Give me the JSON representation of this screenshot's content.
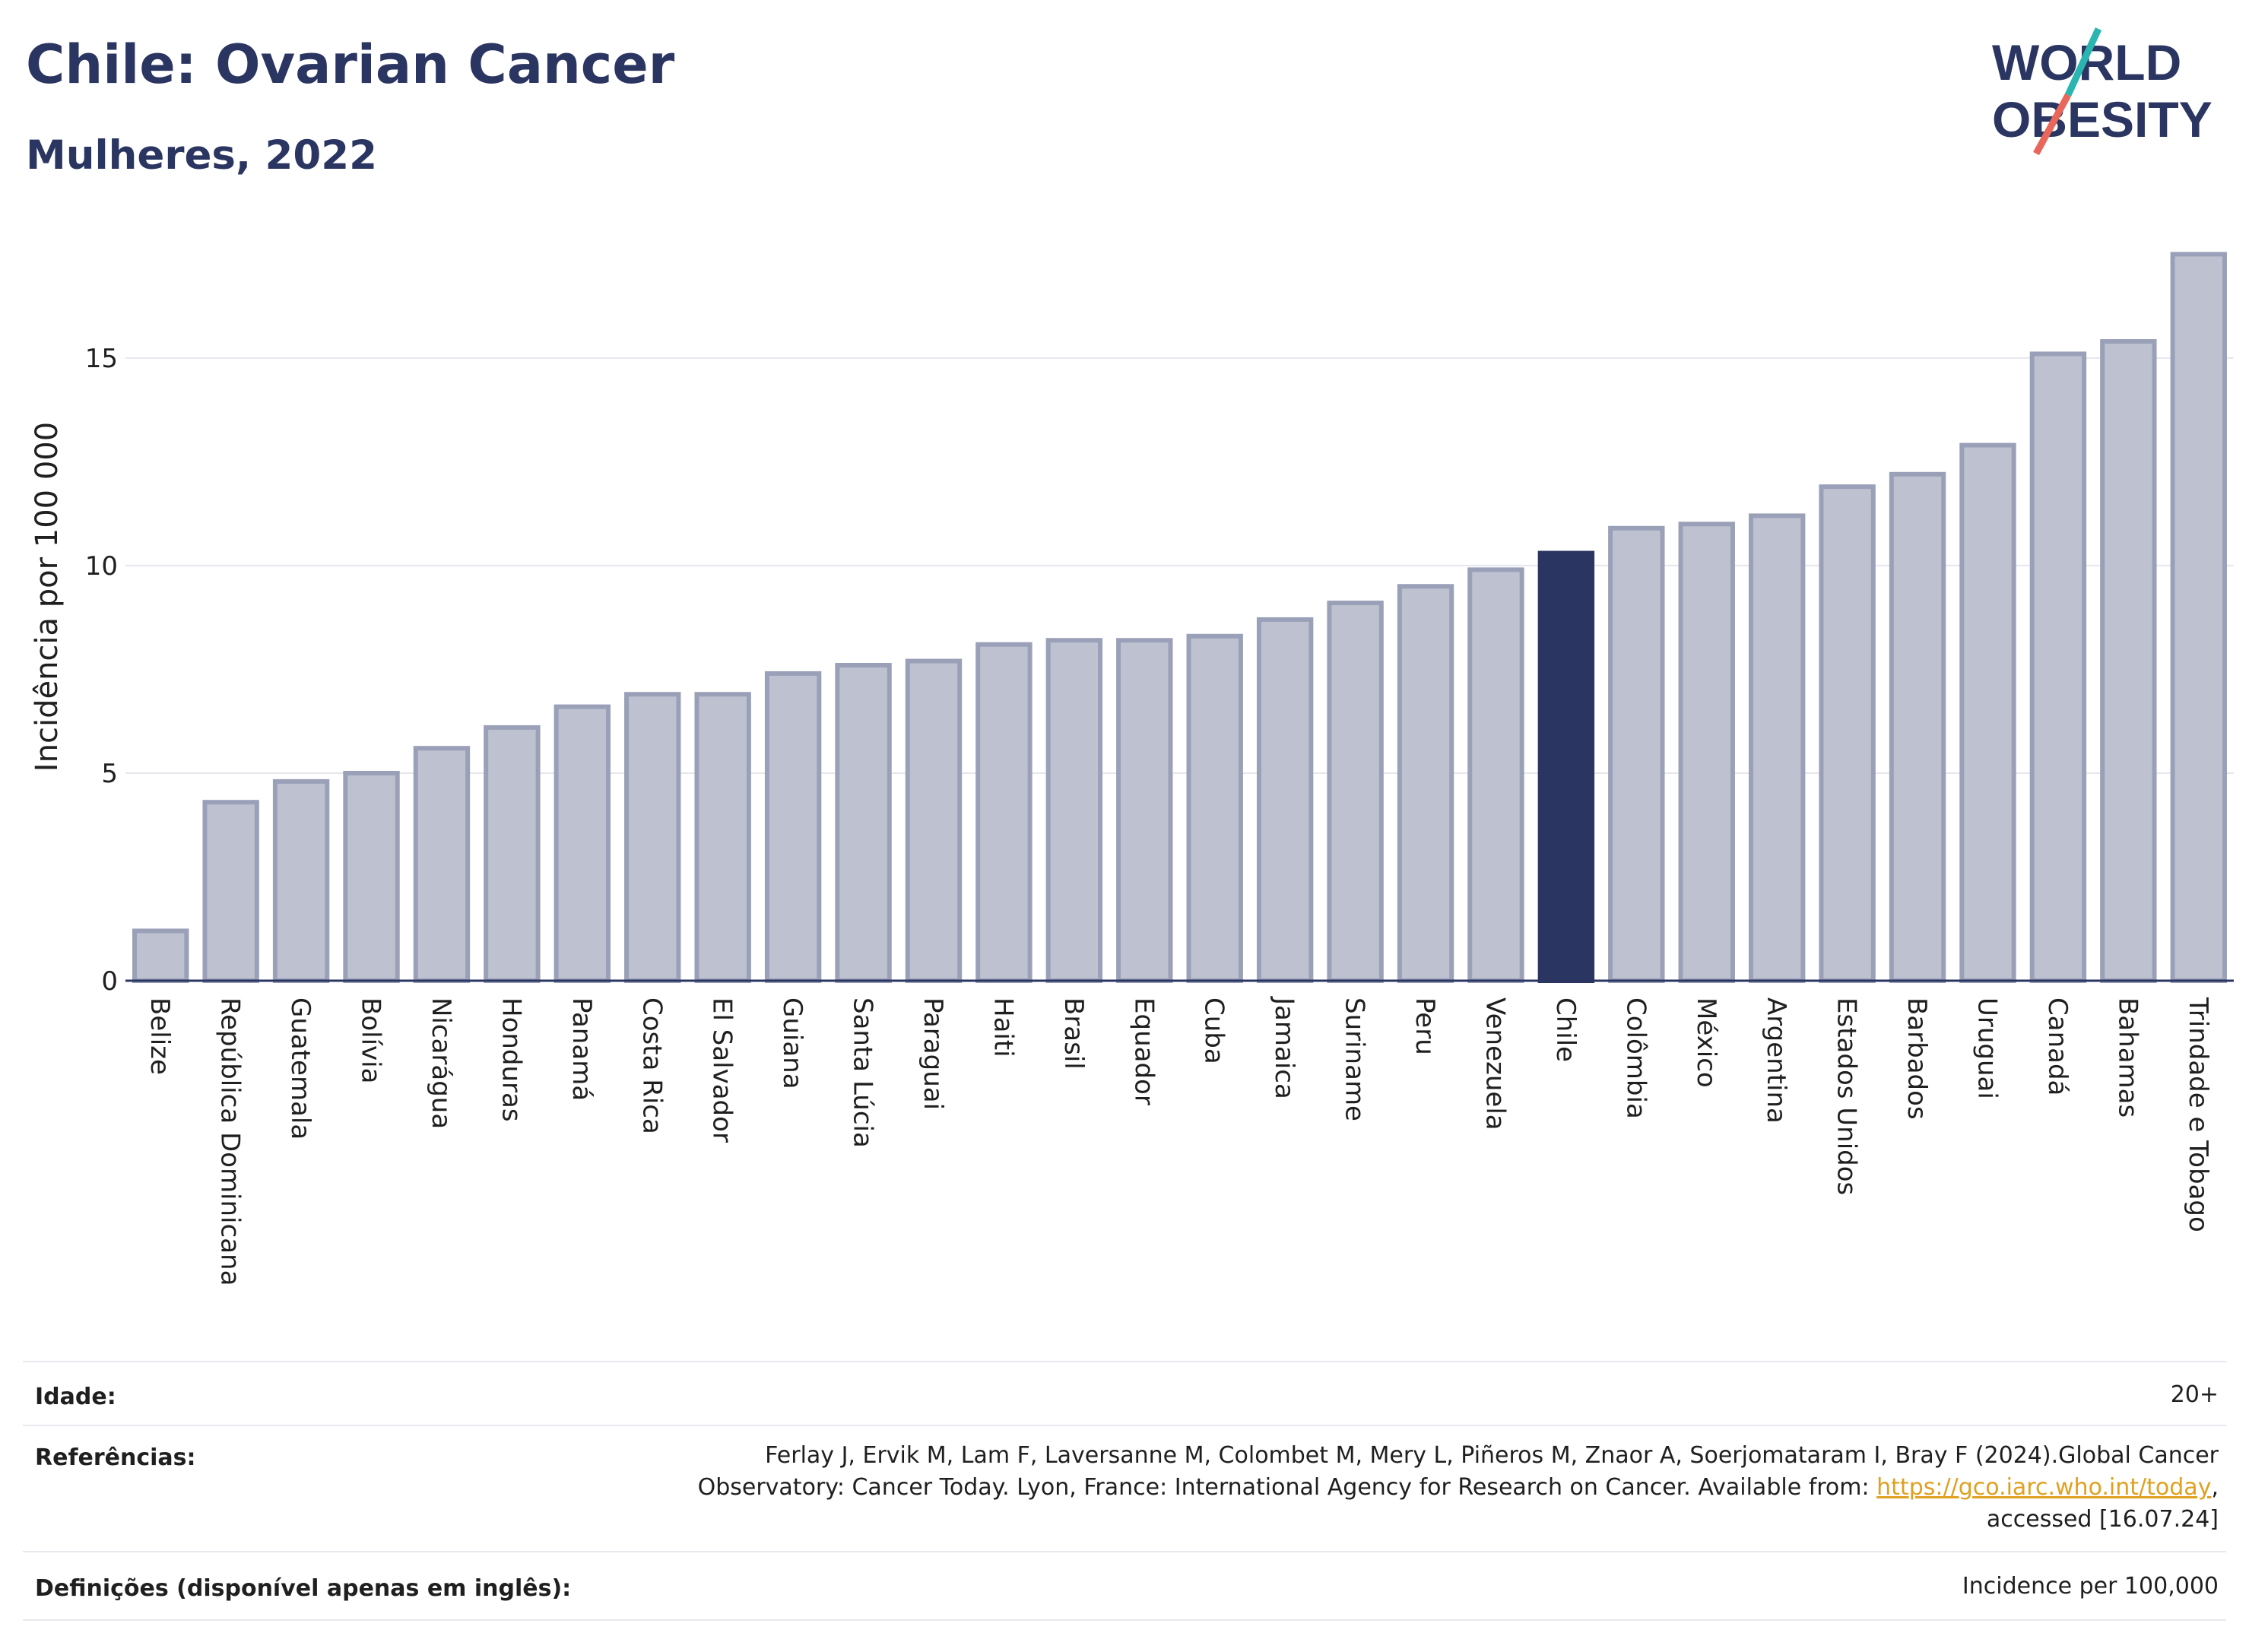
{
  "header": {
    "title": "Chile: Ovarian Cancer",
    "subtitle": "Mulheres, 2022"
  },
  "logo": {
    "line1": "WORLD",
    "line2": "OBESITY",
    "accent_colors": [
      "#2bb5b0",
      "#e8665a"
    ]
  },
  "colors": {
    "bar": "#bec2d0",
    "bar_edge": "#9aa0b8",
    "highlight": "#2b3561",
    "grid": "#e6e6ee",
    "axis": "#2b3561"
  },
  "chart_data": {
    "type": "bar",
    "ylabel": "Incidência por 100 000",
    "ylim": [
      0,
      17.8
    ],
    "yticks": [
      0,
      5,
      10,
      15
    ],
    "highlight": "Chile",
    "categories": [
      "Belize",
      "República Dominicana",
      "Guatemala",
      "Bolívia",
      "Nicarágua",
      "Honduras",
      "Panamá",
      "Costa Rica",
      "El Salvador",
      "Guiana",
      "Santa Lúcia",
      "Paraguai",
      "Haiti",
      "Brasil",
      "Equador",
      "Cuba",
      "Jamaica",
      "Suriname",
      "Peru",
      "Venezuela",
      "Chile",
      "Colômbia",
      "México",
      "Argentina",
      "Estados Unidos",
      "Barbados",
      "Uruguai",
      "Canadá",
      "Bahamas",
      "Trindade e Tobago"
    ],
    "values": [
      1.2,
      4.3,
      4.8,
      5.0,
      5.6,
      6.1,
      6.6,
      6.9,
      6.9,
      7.4,
      7.6,
      7.7,
      8.1,
      8.2,
      8.2,
      8.3,
      8.7,
      9.1,
      9.5,
      9.9,
      10.3,
      10.9,
      11.0,
      11.2,
      11.9,
      12.2,
      12.9,
      15.1,
      15.4,
      17.5
    ]
  },
  "footer": {
    "age_label": "Idade:",
    "age_value": "20+",
    "ref_label": "Referências:",
    "ref_line1": "Ferlay J, Ervik M, Lam F, Laversanne M, Colombet M, Mery L, Piñeros M, Znaor A, Soerjomataram I, Bray F (2024).Global Cancer",
    "ref_line2_prefix": "Observatory: Cancer Today. Lyon, France: International Agency for Research on Cancer. Available from: ",
    "ref_link": "https://gco.iarc.who.int/today",
    "ref_line2_suffix": ",",
    "ref_line3": "accessed [16.07.24]",
    "def_label": "Definições (disponível apenas em inglês):",
    "def_value": "Incidence per 100,000"
  }
}
